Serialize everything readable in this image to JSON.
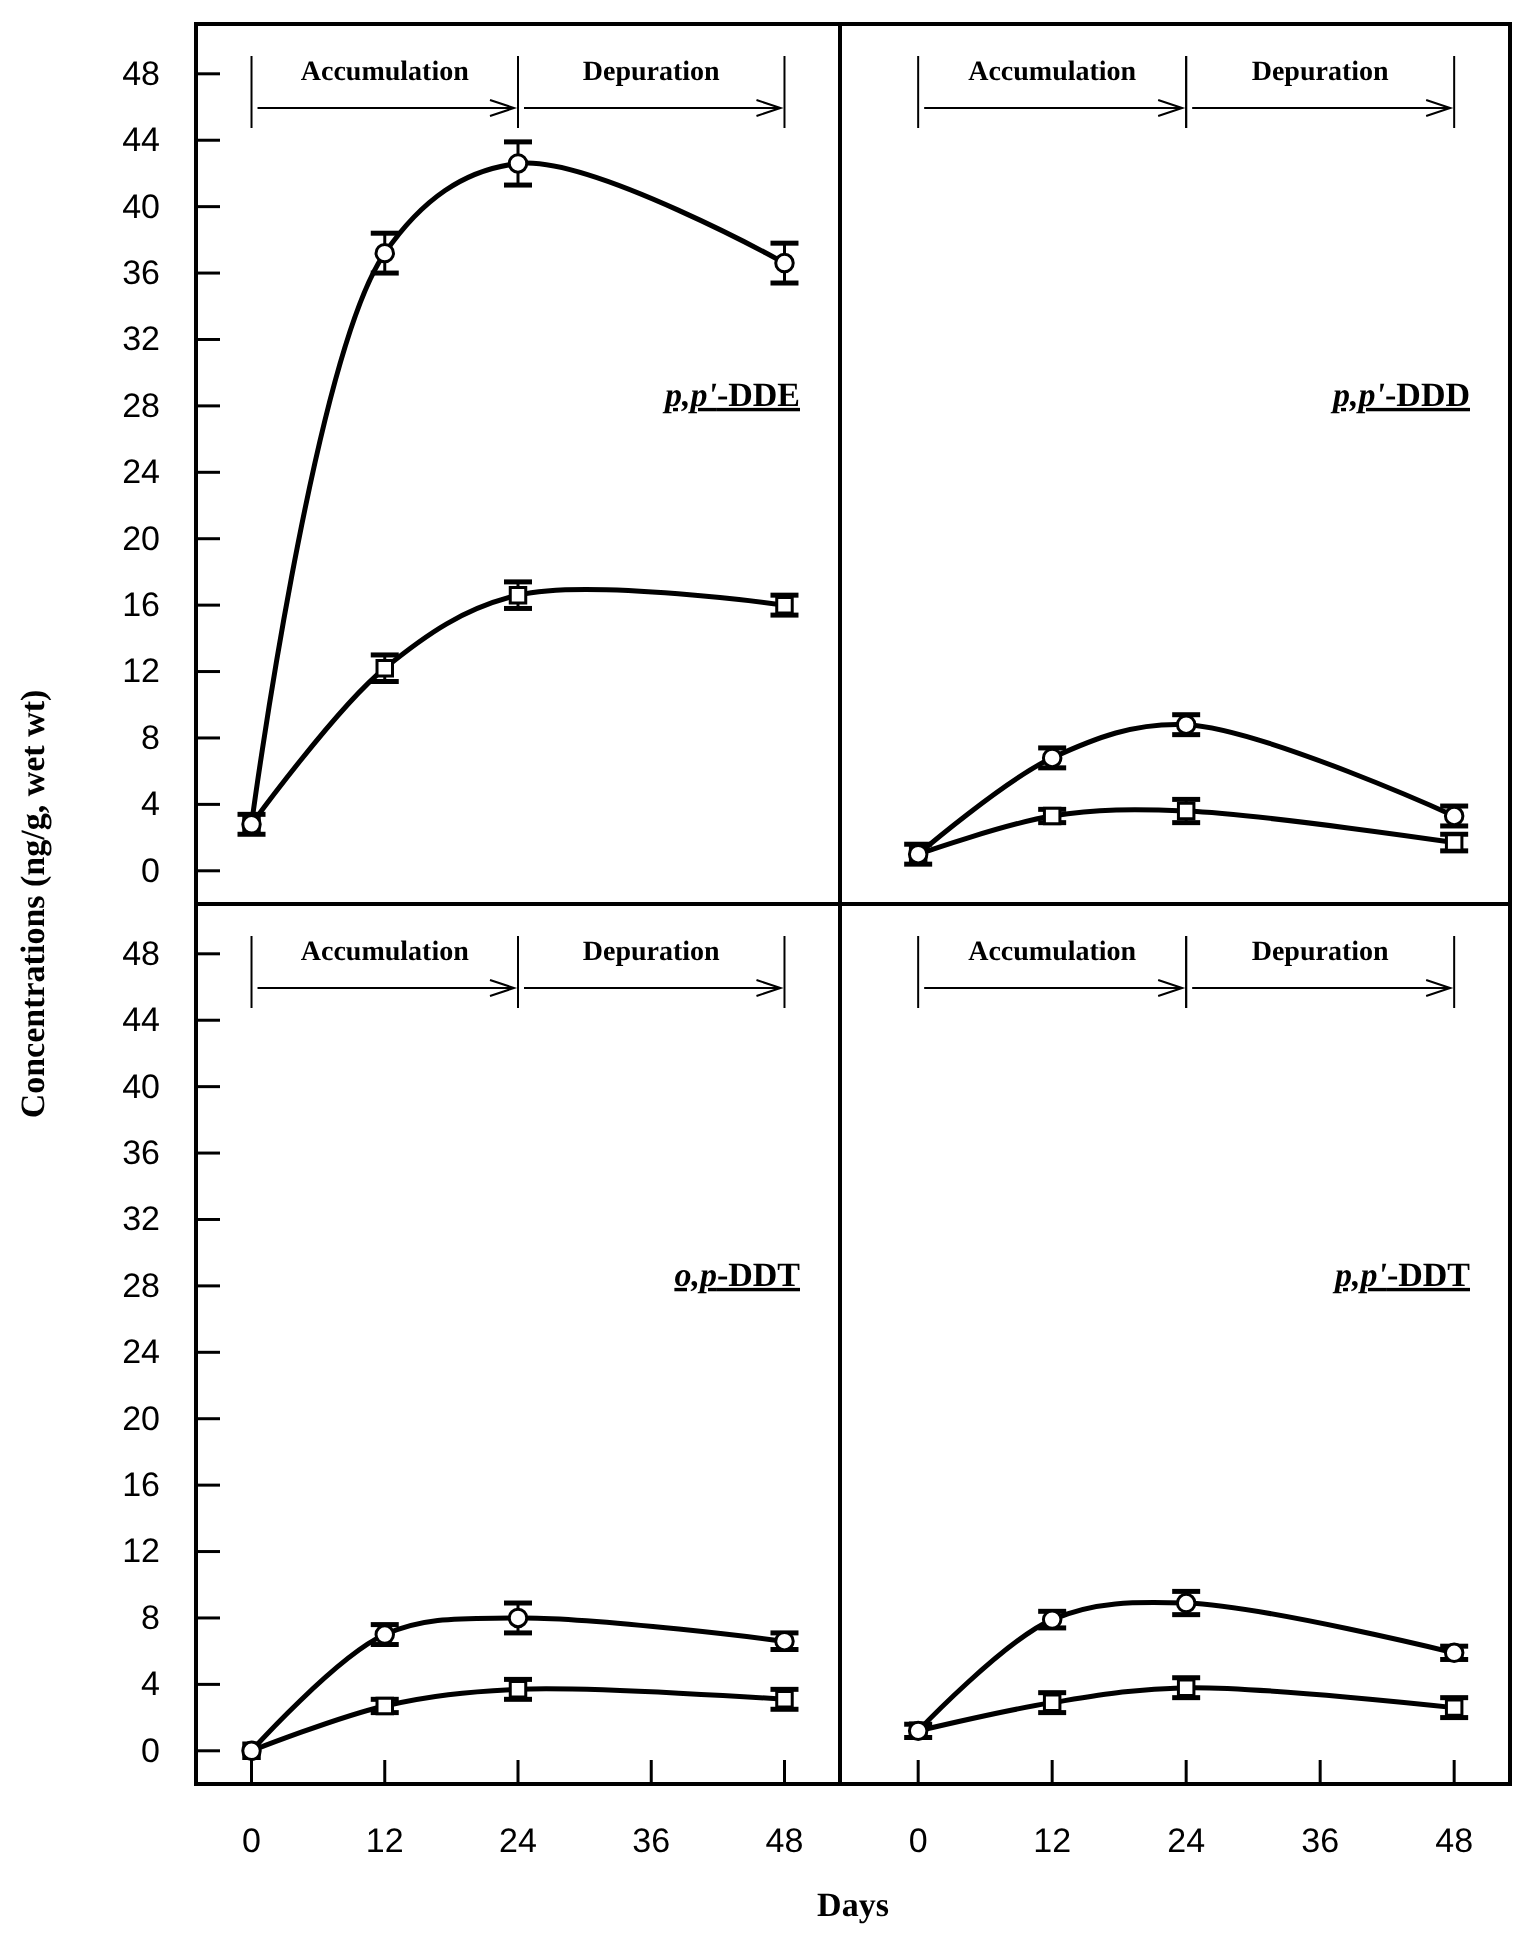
{
  "chart_data": [
    {
      "type": "line",
      "title": "p,p'-DDE",
      "ylabel": "Concentrations (ng/g, wet wt)",
      "x": [
        0,
        12,
        24,
        48
      ],
      "xlim": [
        -5,
        53
      ],
      "ylim": [
        -2,
        51
      ],
      "yticks": [
        0,
        4,
        8,
        12,
        16,
        20,
        24,
        28,
        32,
        36,
        40,
        44,
        48
      ],
      "tick_labels": "y",
      "grid": false,
      "line_style": "solid",
      "annotations": [
        "Accumulation",
        "Depuration"
      ],
      "series": [
        {
          "marker": "circle",
          "color": "#000000",
          "values": [
            2.8,
            37.2,
            42.6,
            36.6
          ],
          "errors": [
            null,
            1.2,
            1.3,
            1.2
          ]
        },
        {
          "marker": "square",
          "color": "#000000",
          "values": [
            2.8,
            12.2,
            16.6,
            16.0
          ],
          "errors": [
            0.6,
            0.8,
            0.8,
            0.6
          ]
        }
      ]
    },
    {
      "type": "line",
      "title": "p,p'-DDD",
      "x": [
        0,
        12,
        24,
        48
      ],
      "xlim": [
        -7,
        53
      ],
      "ylim": [
        -2,
        51
      ],
      "tick_labels": false,
      "grid": false,
      "line_style": "solid",
      "annotations": [
        "Accumulation",
        "Depuration"
      ],
      "series": [
        {
          "marker": "circle",
          "color": "#000000",
          "values": [
            1.0,
            6.8,
            8.8,
            3.3
          ],
          "errors": [
            null,
            0.6,
            0.6,
            0.6
          ]
        },
        {
          "marker": "square",
          "color": "#000000",
          "values": [
            1.0,
            3.3,
            3.6,
            1.7
          ],
          "errors": [
            0.6,
            0.4,
            0.7,
            0.5
          ]
        }
      ]
    },
    {
      "type": "line",
      "title": "o,p-DDT",
      "xlabel": "Days",
      "x": [
        0,
        12,
        24,
        48
      ],
      "xlim": [
        -5,
        53
      ],
      "ylim": [
        -2,
        51
      ],
      "xticks": [
        0,
        12,
        24,
        36,
        48
      ],
      "yticks": [
        0,
        4,
        8,
        12,
        16,
        20,
        24,
        28,
        32,
        36,
        40,
        44,
        48
      ],
      "grid": false,
      "line_style": "solid",
      "annotations": [
        "Accumulation",
        "Depuration"
      ],
      "series": [
        {
          "marker": "circle",
          "color": "#000000",
          "values": [
            0,
            7.0,
            8.0,
            6.6
          ],
          "errors": [
            null,
            0.6,
            0.9,
            0.5
          ]
        },
        {
          "marker": "square",
          "color": "#000000",
          "values": [
            0,
            2.7,
            3.7,
            3.1
          ],
          "errors": [
            null,
            0.4,
            0.6,
            0.6
          ]
        }
      ]
    },
    {
      "type": "line",
      "title": "p,p'-DDT",
      "x": [
        0,
        12,
        24,
        48
      ],
      "xlim": [
        -7,
        53
      ],
      "ylim": [
        -2,
        51
      ],
      "xticks": [
        0,
        12,
        24,
        36,
        48
      ],
      "tick_labels": "x",
      "grid": false,
      "line_style": "solid",
      "annotations": [
        "Accumulation",
        "Depuration"
      ],
      "series": [
        {
          "marker": "circle",
          "color": "#000000",
          "values": [
            1.2,
            7.9,
            8.9,
            5.9
          ],
          "errors": [
            null,
            0.5,
            0.7,
            0.4
          ]
        },
        {
          "marker": "square",
          "color": "#000000",
          "values": [
            1.2,
            2.9,
            3.8,
            2.6
          ],
          "errors": [
            0.4,
            0.6,
            0.6,
            0.6
          ]
        }
      ]
    }
  ]
}
